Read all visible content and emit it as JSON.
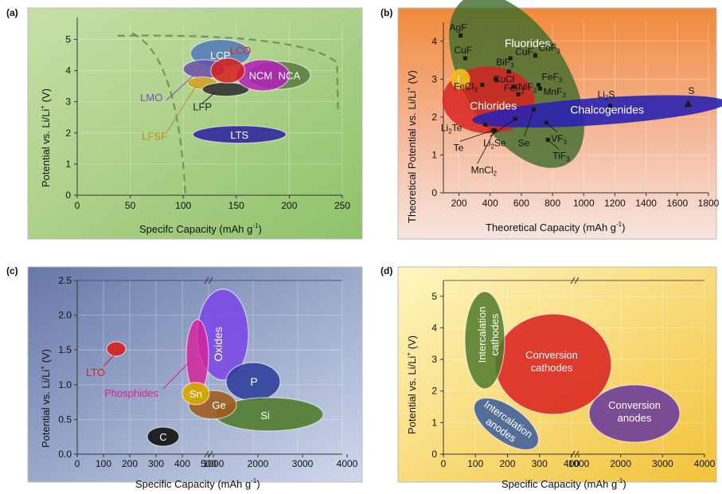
{
  "panels": [
    {
      "id": "a",
      "label": "(a)",
      "chart_data": {
        "type": "scatter",
        "xlabel_parts": [
          "Specifc Capacity (mAh g",
          "-1",
          ")"
        ],
        "ylabel_parts": [
          "Potential vs. Li/Li",
          "+",
          " (V)"
        ],
        "xlim": [
          0,
          250
        ],
        "ylim": [
          0,
          5.5
        ],
        "xticks": [
          0,
          50,
          100,
          150,
          200,
          250
        ],
        "yticks": [
          0,
          1,
          2,
          3,
          4,
          5
        ],
        "regions": [
          {
            "name": "LCP",
            "cx": 135,
            "cy": 4.55,
            "rx": 28,
            "ry": 0.45,
            "color": "#4f79b9",
            "text_color": "#ffffff",
            "label_dx": 0,
            "label_dy": -0.05
          },
          {
            "name": "LMO",
            "cx": 120,
            "cy": 4.05,
            "rx": 20,
            "ry": 0.3,
            "color": "#6a4fa8",
            "text_color": "#7a4fb0",
            "label_dx": -50,
            "label_dy": -0.9
          },
          {
            "name": "LFSF",
            "cx": 118,
            "cy": 3.6,
            "rx": 14,
            "ry": 0.2,
            "color": "#d4a020",
            "text_color": "#b8941f",
            "label_dx": -45,
            "label_dy": -1.7
          },
          {
            "name": "LFP",
            "cx": 140,
            "cy": 3.4,
            "rx": 22,
            "ry": 0.22,
            "color": "#2a2a2a",
            "text_color": "#222222",
            "label_dx": -22,
            "label_dy": -0.55
          },
          {
            "name": "NCA",
            "cx": 190,
            "cy": 3.85,
            "rx": 30,
            "ry": 0.45,
            "color": "#5a7a40",
            "text_color": "#ffffff",
            "label_dx": 10,
            "label_dy": 0
          },
          {
            "name": "NCM",
            "cx": 175,
            "cy": 3.85,
            "rx": 25,
            "ry": 0.5,
            "color": "#b21fb9",
            "text_color": "#ffffff",
            "label_dx": -2,
            "label_dy": 0
          },
          {
            "name": "LCO",
            "cx": 142,
            "cy": 4.0,
            "rx": 16,
            "ry": 0.4,
            "color": "#d81f1f",
            "text_color": "#e8261f",
            "label_dx": 12,
            "label_dy": 0.65
          },
          {
            "name": "LTS",
            "cx": 153,
            "cy": 1.95,
            "rx": 44,
            "ry": 0.28,
            "color": "#2a1fa0",
            "text_color": "#ffffff",
            "label_dx": 0,
            "label_dy": 0
          }
        ]
      }
    },
    {
      "id": "b",
      "label": "(b)",
      "chart_data": {
        "type": "scatter",
        "xlabel_parts": [
          "Theoretical Capacity (mAh g",
          "-1",
          ")"
        ],
        "ylabel_parts": [
          "Theoretical Potential vs. Li/Li",
          "+",
          " (V)"
        ],
        "xlim": [
          100,
          1800
        ],
        "ylim": [
          0,
          4.5
        ],
        "xticks": [
          200,
          400,
          600,
          800,
          1000,
          1200,
          1400,
          1600,
          1800
        ],
        "yticks": [
          0,
          1,
          2,
          3,
          4
        ],
        "regions": [
          {
            "name": "Fluorides",
            "color": "#3d6b2a"
          },
          {
            "name": "Chlorides",
            "color": "#d81f1f"
          },
          {
            "name": "Chalcogenides",
            "color": "#2a22b0"
          }
        ],
        "points": [
          {
            "name": "AgF",
            "x": 210,
            "y": 4.15
          },
          {
            "name": "CuF",
            "x": 240,
            "y": 3.55
          },
          {
            "name": "BiF3",
            "x": 520,
            "y": 3.2
          },
          {
            "name": "CuCl",
            "x": 440,
            "y": 3.0
          },
          {
            "name": "CuF2",
            "x": 530,
            "y": 3.55
          },
          {
            "name": "FeCl3",
            "x": 350,
            "y": 2.85
          },
          {
            "name": "NiF2",
            "x": 550,
            "y": 2.8
          },
          {
            "name": "CoF3",
            "x": 690,
            "y": 3.62
          },
          {
            "name": "FeF3",
            "x": 710,
            "y": 2.85
          },
          {
            "name": "MnF3",
            "x": 720,
            "y": 2.75
          },
          {
            "name": "FeF2",
            "x": 580,
            "y": 2.6
          },
          {
            "name": "Li2S",
            "x": 1170,
            "y": 2.3
          },
          {
            "name": "S",
            "x": 1670,
            "y": 2.35
          },
          {
            "name": "I",
            "x": 210,
            "y": 3.0
          },
          {
            "name": "Li2Te",
            "x": 370,
            "y": 1.8
          },
          {
            "name": "Te",
            "x": 420,
            "y": 1.65
          },
          {
            "name": "Li2Se",
            "x": 560,
            "y": 1.95
          },
          {
            "name": "Se",
            "x": 680,
            "y": 2.2
          },
          {
            "name": "VF3",
            "x": 760,
            "y": 1.85
          },
          {
            "name": "TiF3",
            "x": 770,
            "y": 1.4
          },
          {
            "name": "MnCl2",
            "x": 430,
            "y": 1.65
          }
        ]
      }
    },
    {
      "id": "c",
      "label": "(c)",
      "chart_data": {
        "type": "scatter",
        "xlabel_parts": [
          "Specific Capacity (mAh g",
          "-1",
          ")"
        ],
        "ylabel_parts": [
          "Potential vs. Li/Li",
          "+",
          " (V)"
        ],
        "ylim": [
          0,
          2.5
        ],
        "xticks_left": [
          0,
          100,
          200,
          300,
          400,
          500
        ],
        "xticks_right": [
          1000,
          2000,
          3000,
          4000
        ],
        "yticks": [
          0.0,
          0.5,
          1.0,
          1.5,
          2.0,
          2.5
        ],
        "regions": [
          {
            "name": "LTO",
            "text_color": "#d81f1f",
            "color": "#d81f1f"
          },
          {
            "name": "Phosphides",
            "text_color": "#d81f9a",
            "color": "#d81f9a"
          },
          {
            "name": "Oxides",
            "text_color": "#ffffff",
            "color": "#7a45e8"
          },
          {
            "name": "P",
            "text_color": "#ffffff",
            "color": "#2d3e9c"
          },
          {
            "name": "Sn",
            "text_color": "#ffffff",
            "color": "#d6a800"
          },
          {
            "name": "Ge",
            "text_color": "#ffffff",
            "color": "#a05a20"
          },
          {
            "name": "Si",
            "text_color": "#ffffff",
            "color": "#4f7a2a"
          },
          {
            "name": "C",
            "text_color": "#ffffff",
            "color": "#1a1a1a"
          }
        ]
      }
    },
    {
      "id": "d",
      "label": "(d)",
      "chart_data": {
        "type": "scatter",
        "xlabel_parts": [
          "Specific Capacity (mAh g",
          "-1",
          ")"
        ],
        "ylabel_parts": [
          "Potential vs. Li/Li",
          "+",
          " (V)"
        ],
        "ylim": [
          0,
          5.5
        ],
        "xticks_left": [
          0,
          100,
          200,
          300,
          400
        ],
        "xticks_right": [
          1000,
          2000,
          3000,
          4000
        ],
        "yticks": [
          0,
          1,
          2,
          3,
          4,
          5
        ],
        "regions": [
          {
            "name": "Intercalation cathodes",
            "lines": [
              "Intercalation",
              "cathodes"
            ],
            "color": "#4f7a2a"
          },
          {
            "name": "Conversion cathodes",
            "lines": [
              "Conversion",
              "cathodes"
            ],
            "color": "#d81f1f"
          },
          {
            "name": "Intercalation anodes",
            "lines": [
              "Intercalation",
              "anodes"
            ],
            "color": "#3d5e9c"
          },
          {
            "name": "Conversion anodes",
            "lines": [
              "Conversion",
              "anodes"
            ],
            "color": "#6a3a9c"
          }
        ]
      }
    }
  ]
}
